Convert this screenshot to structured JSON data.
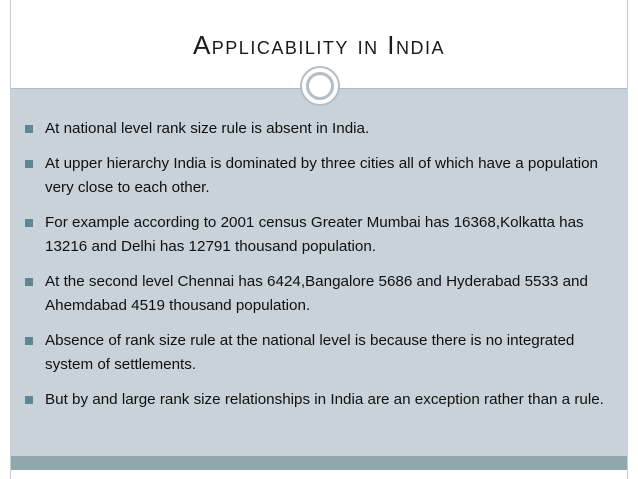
{
  "slide": {
    "title": "Applicability in India",
    "bullets": [
      "At national level rank size rule is absent in India.",
      " At upper hierarchy India is dominated by three cities all of which have a population very close to each other.",
      " For example according to 2001 census Greater Mumbai has 16368,Kolkatta has 13216 and Delhi has 12791 thousand population.",
      " At the second level Chennai has 6424,Bangalore 5686 and Hyderabad 5533 and Ahemdabad 4519 thousand population.",
      " Absence of rank size rule at the national level is because there is no integrated system of settlements.",
      " But by and large rank size relationships in India are an exception rather than a rule."
    ]
  },
  "colors": {
    "content_background": "#c8d2d8",
    "bullet": "#5f8792",
    "footer_band": "#8fa7ad"
  }
}
